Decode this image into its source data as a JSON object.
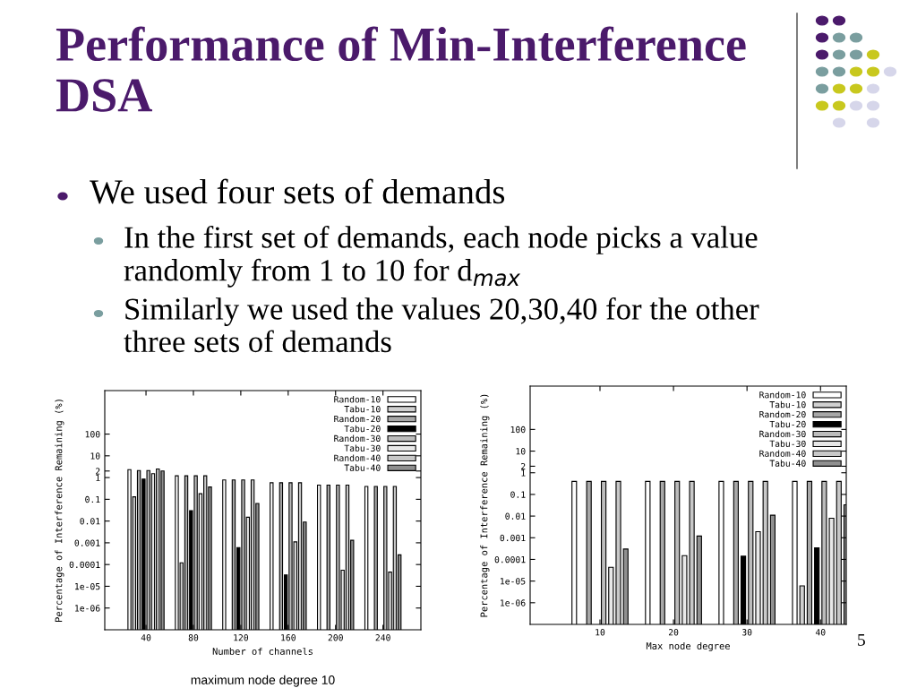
{
  "chart_data": [
    {
      "type": "other",
      "title": "Performance of Min-Interference DSA",
      "annotations": [
        "We used four sets of demands",
        "In the first set of demands, each node picks a value randomly from 1 to 10 for d$_{max}$",
        "Similarly we used the values 20,30,40 for the other three sets of demands",
        "5"
      ]
    },
    {
      "type": "bar",
      "xlabel": "Number of channels",
      "ylabel": "Percentage of Interference Remaining (%)",
      "log": "y",
      "legend": "top right",
      "grid": false,
      "categories": [
        "40",
        "80",
        "120",
        "160",
        "200",
        "240"
      ],
      "ylim": [
        1e-07,
        10000
      ],
      "yticks": [
        100,
        10,
        2,
        1,
        0.1,
        0.01,
        0.001,
        0.0001,
        1e-05,
        1e-06
      ],
      "annotations": [
        "maximum node degree 10"
      ],
      "series": [
        {
          "name": "Random-10",
          "color": "#ffffff",
          "values": [
            2.3,
            1.2,
            0.78,
            0.58,
            0.45,
            0.39
          ]
        },
        {
          "name": "Tabu-10",
          "color": "#d0d0d0",
          "values": [
            0.13,
            0.00012,
            null,
            null,
            null,
            null
          ]
        },
        {
          "name": "Random-20",
          "color": "#a8a8a8",
          "values": [
            2.1,
            1.2,
            0.78,
            0.58,
            0.45,
            0.39
          ]
        },
        {
          "name": "Tabu-20",
          "color": "#000000",
          "values": [
            0.85,
            0.03,
            0.0006,
            3.3e-05,
            null,
            null
          ]
        },
        {
          "name": "Random-30",
          "color": "#bcbcbc",
          "values": [
            2.1,
            1.2,
            0.78,
            0.58,
            0.45,
            0.39
          ]
        },
        {
          "name": "Tabu-30",
          "color": "#e8e8e8",
          "values": [
            1.5,
            0.18,
            0.015,
            0.0011,
            5.5e-05,
            4.5e-05
          ]
        },
        {
          "name": "Random-40",
          "color": "#c8c8c8",
          "values": [
            2.5,
            1.2,
            0.78,
            0.58,
            0.45,
            0.39
          ]
        },
        {
          "name": "Tabu-40",
          "color": "#909090",
          "values": [
            2,
            0.37,
            0.064,
            0.009,
            0.0013,
            0.00028
          ]
        }
      ]
    },
    {
      "type": "bar",
      "xlabel": "Max node degree",
      "ylabel": "Percentage of Interference Remaining (%)",
      "log": "y",
      "legend": "top right",
      "grid": false,
      "categories": [
        "10",
        "20",
        "30",
        "40"
      ],
      "ylim": [
        1e-07,
        10000
      ],
      "yticks": [
        100,
        10,
        2,
        1,
        0.1,
        0.01,
        0.001,
        0.0001,
        1e-05,
        1e-06
      ],
      "series": [
        {
          "name": "Random-10",
          "color": "#ffffff",
          "values": [
            0.4,
            0.4,
            0.4,
            0.4
          ]
        },
        {
          "name": "Tabu-10",
          "color": "#d0d0d0",
          "values": [
            null,
            null,
            null,
            6e-06
          ]
        },
        {
          "name": "Random-20",
          "color": "#a8a8a8",
          "values": [
            0.4,
            0.4,
            0.4,
            0.4
          ]
        },
        {
          "name": "Tabu-20",
          "color": "#000000",
          "values": [
            null,
            null,
            0.00014,
            0.00034
          ]
        },
        {
          "name": "Random-30",
          "color": "#bcbcbc",
          "values": [
            0.4,
            0.4,
            0.4,
            0.4
          ]
        },
        {
          "name": "Tabu-30",
          "color": "#e8e8e8",
          "values": [
            4.3e-05,
            0.00015,
            0.0019,
            0.008
          ]
        },
        {
          "name": "Random-40",
          "color": "#c8c8c8",
          "values": [
            0.4,
            0.4,
            0.4,
            0.4
          ]
        },
        {
          "name": "Tabu-40",
          "color": "#909090",
          "values": [
            0.0003,
            0.0012,
            0.011,
            0.033
          ]
        }
      ]
    }
  ]
}
